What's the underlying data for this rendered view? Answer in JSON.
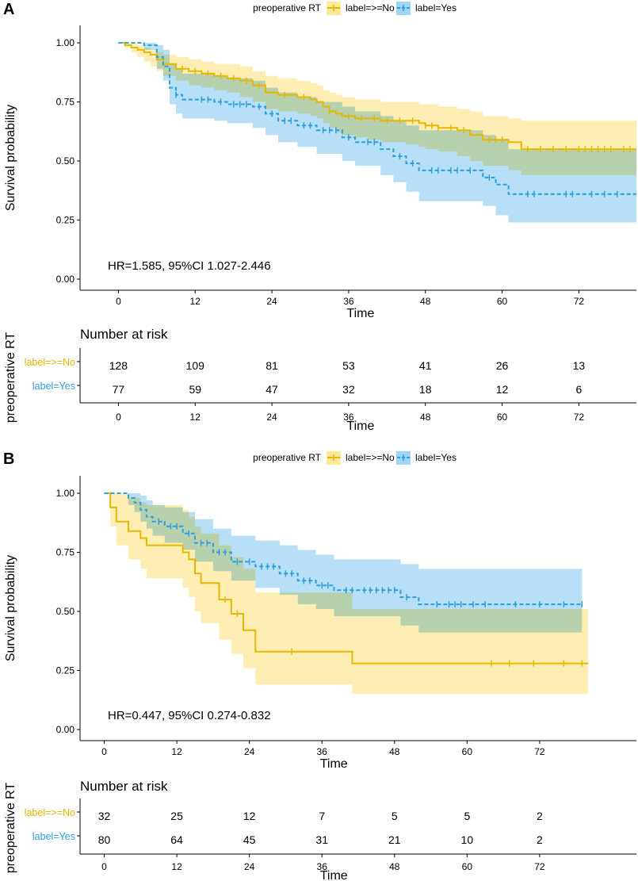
{
  "colors": {
    "no": "#E7B800",
    "yes": "#2E9FDF",
    "no_band": "#FFE89A",
    "yes_band": "#9FD6F6"
  },
  "chart_data": [
    {
      "type": "line",
      "subtype": "kaplan-meier",
      "panel_label": "A",
      "legend": {
        "title": "preoperative RT",
        "entries": [
          "label=>=No",
          "label=Yes"
        ],
        "position": "top"
      },
      "ylabel": "Survival probability",
      "xlabel": "Time",
      "xlim": [
        -6,
        81
      ],
      "ylim": [
        0,
        1
      ],
      "xticks": [
        "0",
        "12",
        "24",
        "36",
        "48",
        "60",
        "72"
      ],
      "yticks": [
        "0.00",
        "0.25",
        "0.50",
        "0.75",
        "1.00"
      ],
      "annotation": "HR=1.585, 95%CI 1.027-2.446",
      "series": [
        {
          "name": "label=>=No",
          "line_style": "solid",
          "time": [
            0,
            1,
            2,
            3,
            4,
            5,
            6,
            7,
            9,
            11,
            13,
            15,
            17,
            19,
            21,
            23,
            25,
            28,
            30,
            31,
            32,
            33,
            34,
            35,
            37,
            39,
            41,
            43,
            45,
            47,
            48,
            50,
            53,
            55,
            57,
            61,
            63,
            70,
            81
          ],
          "surv": [
            1.0,
            0.99,
            0.98,
            0.97,
            0.96,
            0.95,
            0.93,
            0.91,
            0.89,
            0.88,
            0.87,
            0.86,
            0.85,
            0.84,
            0.82,
            0.79,
            0.78,
            0.77,
            0.76,
            0.75,
            0.73,
            0.71,
            0.7,
            0.69,
            0.68,
            0.68,
            0.67,
            0.67,
            0.67,
            0.66,
            0.65,
            0.64,
            0.63,
            0.61,
            0.59,
            0.58,
            0.55,
            0.55,
            0.55
          ],
          "lower": [
            1.0,
            0.98,
            0.96,
            0.94,
            0.92,
            0.9,
            0.88,
            0.86,
            0.84,
            0.82,
            0.81,
            0.8,
            0.79,
            0.77,
            0.75,
            0.72,
            0.71,
            0.7,
            0.69,
            0.68,
            0.66,
            0.64,
            0.62,
            0.61,
            0.6,
            0.59,
            0.58,
            0.58,
            0.57,
            0.56,
            0.55,
            0.54,
            0.52,
            0.5,
            0.48,
            0.46,
            0.44,
            0.44,
            0.44
          ],
          "upper": [
            1.0,
            1.0,
            1.0,
            0.99,
            0.98,
            0.97,
            0.96,
            0.95,
            0.94,
            0.93,
            0.92,
            0.91,
            0.91,
            0.9,
            0.88,
            0.86,
            0.85,
            0.84,
            0.83,
            0.82,
            0.8,
            0.79,
            0.78,
            0.77,
            0.76,
            0.76,
            0.75,
            0.75,
            0.75,
            0.74,
            0.74,
            0.73,
            0.72,
            0.71,
            0.69,
            0.68,
            0.67,
            0.67,
            0.67
          ],
          "censor": [
            10,
            12,
            14,
            16,
            18,
            20,
            22,
            26,
            29,
            33,
            36,
            38,
            40,
            42,
            44,
            46,
            48,
            49,
            50,
            52,
            54,
            58,
            59,
            60,
            64,
            66,
            68,
            70,
            72,
            73,
            74,
            75,
            76,
            77,
            79,
            80
          ]
        },
        {
          "name": "label=Yes",
          "line_style": "dashed",
          "time": [
            0,
            4,
            6,
            7,
            8,
            9,
            10,
            15,
            17,
            21,
            23,
            25,
            28,
            31,
            35,
            37,
            41,
            43,
            45,
            47,
            57,
            59,
            61,
            81
          ],
          "surv": [
            1.0,
            0.99,
            0.94,
            0.9,
            0.81,
            0.78,
            0.76,
            0.75,
            0.74,
            0.73,
            0.7,
            0.67,
            0.65,
            0.63,
            0.6,
            0.58,
            0.55,
            0.52,
            0.49,
            0.46,
            0.43,
            0.4,
            0.36,
            0.36
          ],
          "lower": [
            1.0,
            0.97,
            0.89,
            0.84,
            0.74,
            0.7,
            0.68,
            0.67,
            0.66,
            0.64,
            0.61,
            0.58,
            0.56,
            0.53,
            0.5,
            0.48,
            0.44,
            0.41,
            0.37,
            0.33,
            0.31,
            0.27,
            0.24,
            0.24
          ],
          "upper": [
            1.0,
            1.0,
            0.99,
            0.97,
            0.91,
            0.89,
            0.87,
            0.86,
            0.85,
            0.84,
            0.81,
            0.79,
            0.77,
            0.75,
            0.73,
            0.71,
            0.69,
            0.67,
            0.65,
            0.63,
            0.61,
            0.59,
            0.55,
            0.55
          ],
          "censor": [
            9,
            13,
            14,
            16,
            18,
            19,
            20,
            22,
            24,
            26,
            27,
            29,
            30,
            32,
            33,
            34,
            36,
            39,
            40,
            44,
            46,
            49,
            50,
            52,
            53,
            55,
            58,
            64,
            65,
            70,
            71,
            74,
            76,
            78
          ]
        }
      ],
      "risk_table": {
        "title": "Number at risk",
        "y_title": "preoperative RT",
        "xlabel": "Time",
        "rows": [
          {
            "group": "label=>=No",
            "values": [
              "128",
              "109",
              "81",
              "53",
              "41",
              "26",
              "13"
            ]
          },
          {
            "group": "label=Yes",
            "values": [
              "77",
              "59",
              "47",
              "32",
              "18",
              "12",
              "6"
            ]
          }
        ]
      }
    },
    {
      "type": "line",
      "subtype": "kaplan-meier",
      "panel_label": "B",
      "legend": {
        "title": "preoperative RT",
        "entries": [
          "label=>=No",
          "label=Yes"
        ],
        "position": "top"
      },
      "ylabel": "Survival probability",
      "xlabel": "Time",
      "xlim": [
        -4,
        88
      ],
      "ylim": [
        0,
        1
      ],
      "xticks": [
        "0",
        "12",
        "24",
        "36",
        "48",
        "60",
        "72"
      ],
      "yticks": [
        "0.00",
        "0.25",
        "0.50",
        "0.75",
        "1.00"
      ],
      "annotation": "HR=0.447, 95%CI 0.274-0.832",
      "series": [
        {
          "name": "label=>=No",
          "line_style": "solid",
          "time": [
            0,
            1,
            2,
            4,
            6,
            7,
            13,
            14,
            15,
            16,
            19,
            21,
            23,
            25,
            41,
            80
          ],
          "surv": [
            1.0,
            0.94,
            0.88,
            0.84,
            0.81,
            0.78,
            0.75,
            0.72,
            0.66,
            0.62,
            0.55,
            0.49,
            0.42,
            0.33,
            0.28,
            0.28
          ],
          "lower": [
            1.0,
            0.86,
            0.78,
            0.72,
            0.68,
            0.64,
            0.6,
            0.56,
            0.5,
            0.45,
            0.38,
            0.32,
            0.26,
            0.19,
            0.15,
            0.15
          ],
          "upper": [
            1.0,
            1.0,
            1.0,
            0.98,
            0.96,
            0.95,
            0.93,
            0.9,
            0.86,
            0.83,
            0.78,
            0.73,
            0.68,
            0.58,
            0.51,
            0.51
          ],
          "censor": [
            20,
            22,
            31,
            64,
            67,
            71,
            76,
            79
          ]
        },
        {
          "name": "label=Yes",
          "line_style": "dashed",
          "time": [
            0,
            4,
            5,
            6,
            7,
            8,
            10,
            13,
            15,
            18,
            21,
            25,
            29,
            32,
            35,
            38,
            43,
            49,
            52,
            53,
            79
          ],
          "surv": [
            1.0,
            0.98,
            0.96,
            0.93,
            0.9,
            0.88,
            0.86,
            0.83,
            0.79,
            0.75,
            0.71,
            0.69,
            0.66,
            0.63,
            0.61,
            0.59,
            0.59,
            0.56,
            0.53,
            0.53,
            0.53
          ],
          "lower": [
            1.0,
            0.95,
            0.92,
            0.88,
            0.85,
            0.82,
            0.79,
            0.76,
            0.71,
            0.67,
            0.63,
            0.6,
            0.57,
            0.53,
            0.51,
            0.48,
            0.48,
            0.44,
            0.41,
            0.41,
            0.41
          ],
          "upper": [
            1.0,
            1.0,
            1.0,
            0.99,
            0.97,
            0.95,
            0.94,
            0.92,
            0.89,
            0.85,
            0.82,
            0.8,
            0.78,
            0.76,
            0.74,
            0.72,
            0.72,
            0.7,
            0.68,
            0.68,
            0.68
          ],
          "censor": [
            9,
            11,
            12,
            14,
            16,
            17,
            19,
            20,
            22,
            24,
            26,
            27,
            28,
            30,
            31,
            33,
            34,
            36,
            37,
            40,
            41,
            43,
            44,
            45,
            46,
            47,
            48,
            50,
            55,
            57,
            58,
            59,
            61,
            63,
            68,
            72,
            76,
            79
          ]
        }
      ],
      "risk_table": {
        "title": "Number at risk",
        "y_title": "preoperative RT",
        "xlabel": "Time",
        "rows": [
          {
            "group": "label=>=No",
            "values": [
              "32",
              "25",
              "12",
              "7",
              "5",
              "5",
              "2"
            ]
          },
          {
            "group": "label=Yes",
            "values": [
              "80",
              "64",
              "45",
              "31",
              "21",
              "10",
              "2"
            ]
          }
        ]
      }
    }
  ]
}
